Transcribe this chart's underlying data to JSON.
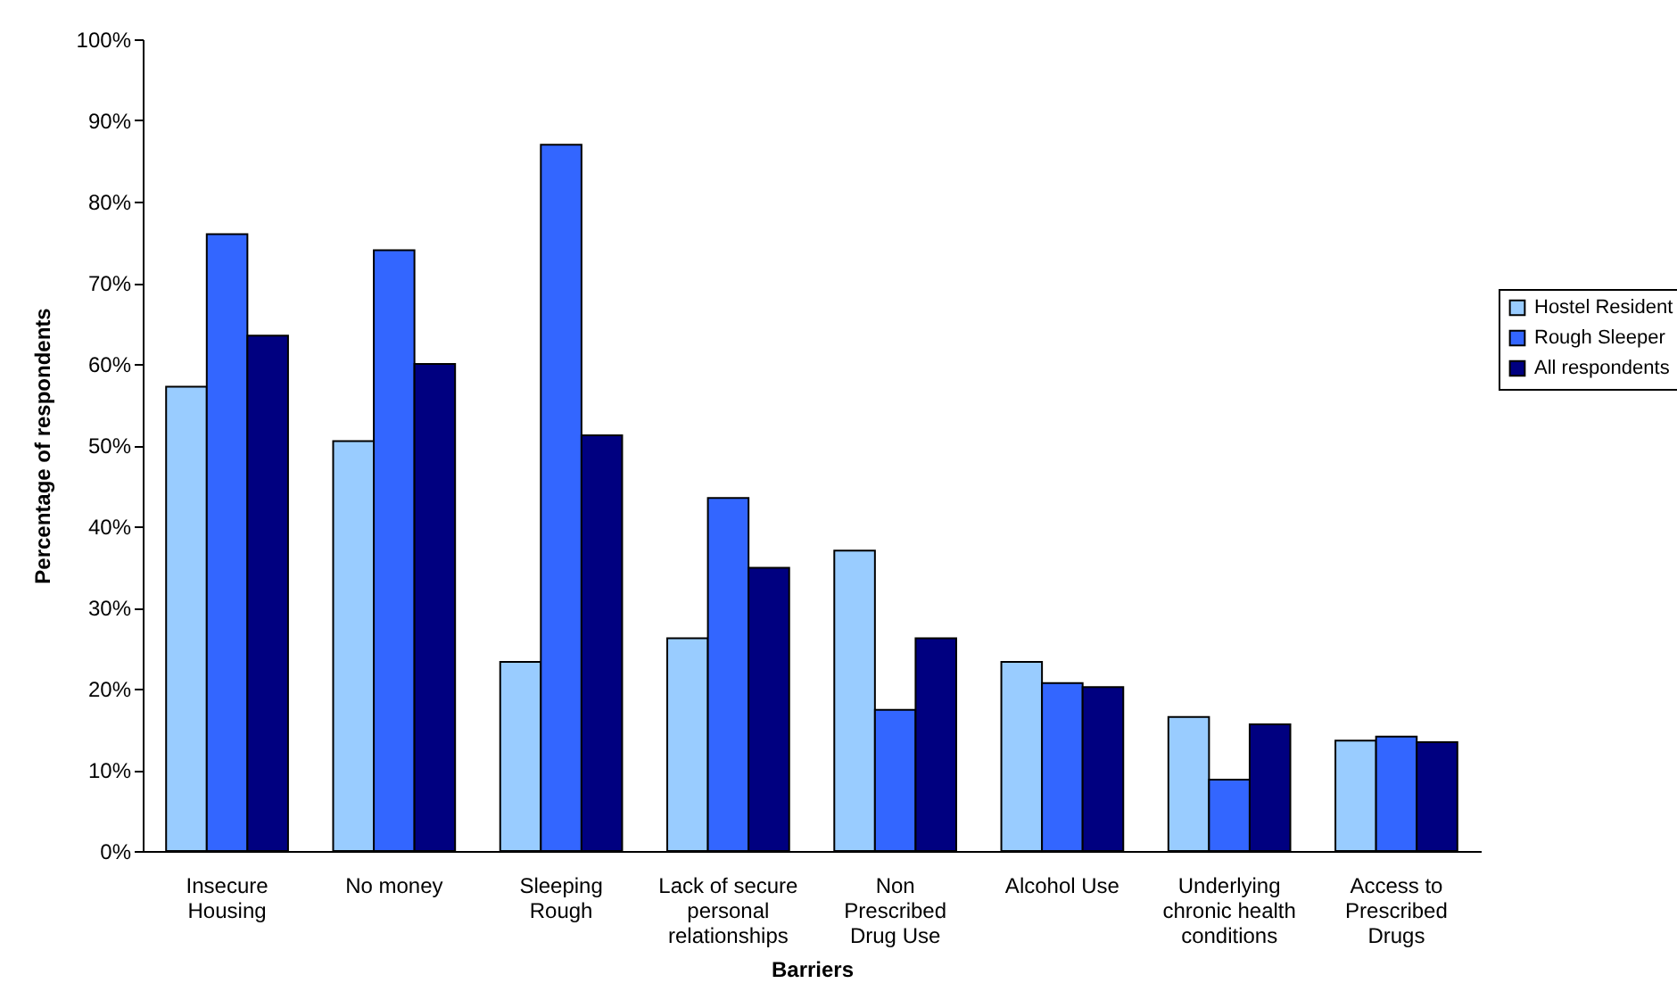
{
  "chart_data": {
    "type": "bar",
    "xlabel": "Barriers",
    "ylabel": "Percentage of respondents",
    "categories": [
      "Insecure Housing",
      "No money",
      "Sleeping Rough",
      "Lack of secure personal relationships",
      "Non Prescribed Drug Use",
      "Alcohol Use",
      "Underlying chronic health conditions",
      "Access to Prescribed Drugs"
    ],
    "series": [
      {
        "name": "Hostel Resident",
        "color": "#99ccff",
        "values": [
          57.2,
          50.5,
          23.3,
          26.2,
          37,
          23.3,
          16.5,
          13.6
        ]
      },
      {
        "name": "Rough Sleeper",
        "color": "#3366ff",
        "values": [
          76,
          74,
          87,
          43.5,
          17.4,
          20.7,
          8.8,
          14.1
        ]
      },
      {
        "name": "All respondents",
        "color": "#000080",
        "values": [
          63.5,
          60,
          51.2,
          34.9,
          26.2,
          20.2,
          15.6,
          13.4
        ]
      }
    ],
    "ylim": [
      0,
      100
    ],
    "yticks": [
      {
        "value": 0,
        "label": "0%"
      },
      {
        "value": 10,
        "label": "10%"
      },
      {
        "value": 20,
        "label": "20%"
      },
      {
        "value": 30,
        "label": "30%"
      },
      {
        "value": 40,
        "label": "40%"
      },
      {
        "value": 50,
        "label": "50%"
      },
      {
        "value": 60,
        "label": "60%"
      },
      {
        "value": 70,
        "label": "70%"
      },
      {
        "value": 80,
        "label": "80%"
      },
      {
        "value": 90,
        "label": "90%"
      },
      {
        "value": 100,
        "label": "100%"
      }
    ],
    "grid": false,
    "legend": "right"
  }
}
